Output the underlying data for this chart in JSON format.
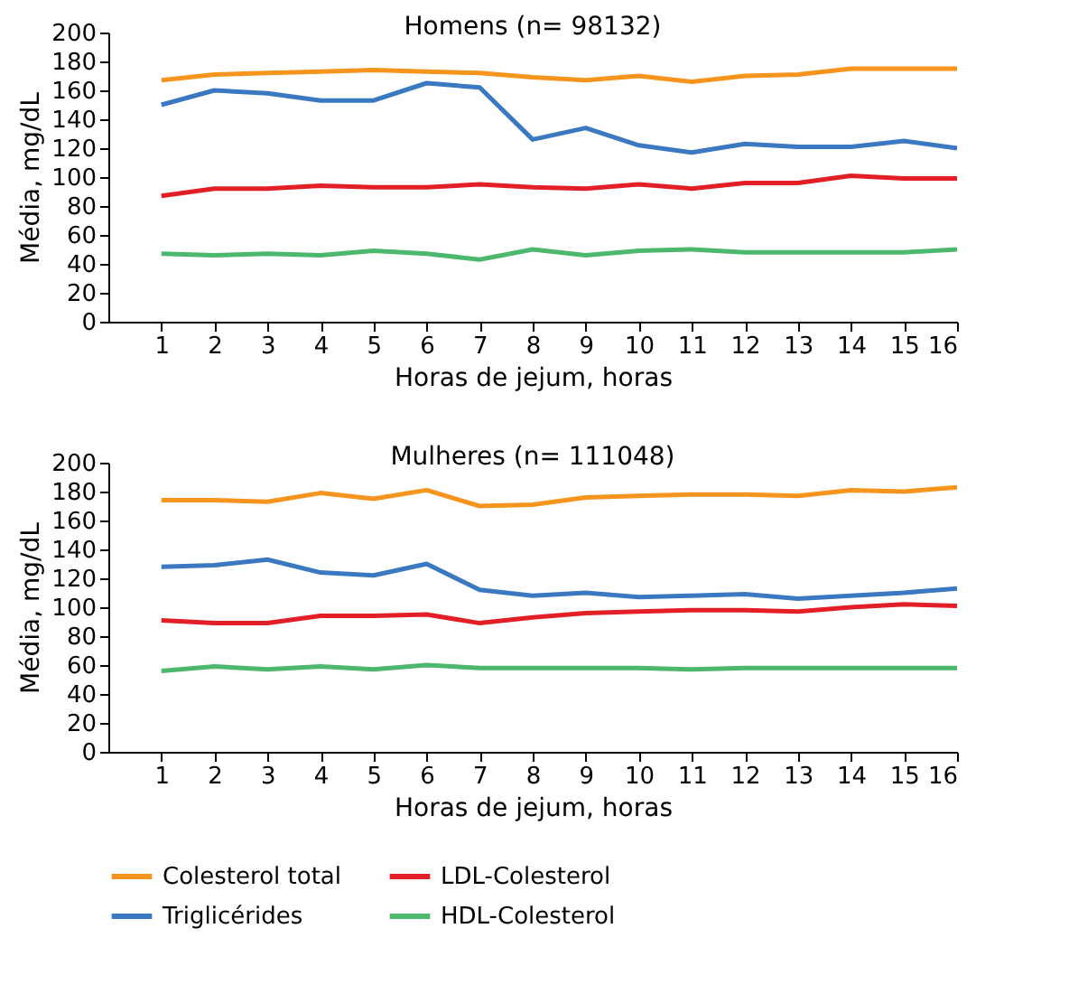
{
  "chart_data": [
    {
      "type": "line",
      "title": "Homens (n= 98132)",
      "xlabel": "Horas de jejum, horas",
      "ylabel": "Média, mg/dL",
      "x": [
        1,
        2,
        3,
        4,
        5,
        6,
        7,
        8,
        9,
        10,
        11,
        12,
        13,
        14,
        15,
        16
      ],
      "xlim": [
        0,
        16
      ],
      "xticks": [
        1,
        2,
        3,
        4,
        5,
        6,
        7,
        8,
        9,
        10,
        11,
        12,
        13,
        14,
        15,
        16
      ],
      "ylim": [
        0,
        200
      ],
      "yticks": [
        0,
        20,
        40,
        60,
        80,
        100,
        120,
        140,
        160,
        180,
        200
      ],
      "grid": false,
      "legend": false,
      "marker": "none",
      "series": [
        {
          "color": "#f7941d",
          "values": [
            167,
            171,
            172,
            173,
            174,
            173,
            172,
            169,
            167,
            170,
            166,
            170,
            171,
            175,
            175,
            175
          ]
        },
        {
          "color": "#e21f26",
          "values": [
            87,
            92,
            92,
            94,
            93,
            93,
            95,
            93,
            92,
            95,
            92,
            96,
            96,
            101,
            99,
            99
          ]
        },
        {
          "color": "#3a78c2",
          "values": [
            150,
            160,
            158,
            153,
            153,
            165,
            162,
            126,
            134,
            122,
            117,
            123,
            121,
            121,
            125,
            120
          ]
        },
        {
          "color": "#4cb86e",
          "values": [
            47,
            46,
            47,
            46,
            49,
            47,
            43,
            50,
            46,
            49,
            50,
            48,
            48,
            48,
            48,
            50
          ]
        }
      ]
    },
    {
      "type": "line",
      "title": "Mulheres (n= 111048)",
      "xlabel": "Horas de jejum, horas",
      "ylabel": "Média, mg/dL",
      "x": [
        1,
        2,
        3,
        4,
        5,
        6,
        7,
        8,
        9,
        10,
        11,
        12,
        13,
        14,
        15,
        16
      ],
      "xlim": [
        0,
        16
      ],
      "xticks": [
        1,
        2,
        3,
        4,
        5,
        6,
        7,
        8,
        9,
        10,
        11,
        12,
        13,
        14,
        15,
        16
      ],
      "ylim": [
        0,
        200
      ],
      "yticks": [
        0,
        20,
        40,
        60,
        80,
        100,
        120,
        140,
        160,
        180,
        200
      ],
      "grid": false,
      "legend": "bottom",
      "marker": "none",
      "series": [
        {
          "name": "Colesterol total",
          "color": "#f7941d",
          "values": [
            174,
            174,
            173,
            179,
            175,
            181,
            170,
            171,
            176,
            177,
            178,
            178,
            177,
            181,
            180,
            183
          ]
        },
        {
          "name": "LDL-Colesterol",
          "color": "#e21f26",
          "values": [
            91,
            89,
            89,
            94,
            94,
            95,
            89,
            93,
            96,
            97,
            98,
            98,
            97,
            100,
            102,
            101
          ]
        },
        {
          "name": "Triglicérides",
          "color": "#3a78c2",
          "values": [
            128,
            129,
            133,
            124,
            122,
            130,
            112,
            108,
            110,
            107,
            108,
            109,
            106,
            108,
            110,
            113
          ]
        },
        {
          "name": "HDL-Colesterol",
          "color": "#4cb86e",
          "values": [
            56,
            59,
            57,
            59,
            57,
            60,
            58,
            58,
            58,
            58,
            57,
            58,
            58,
            58,
            58,
            58
          ]
        }
      ]
    }
  ]
}
